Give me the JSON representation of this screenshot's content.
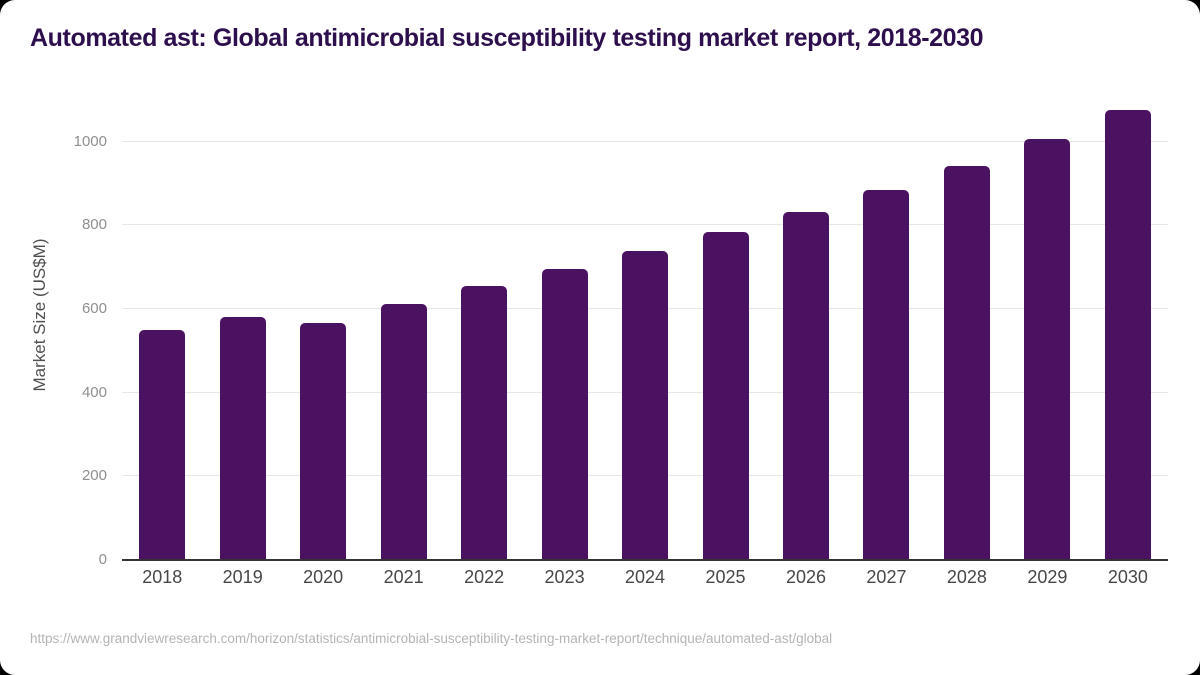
{
  "page": {
    "title": "Automated ast: Global antimicrobial susceptibility testing market report, 2018-2030",
    "source_url": "https://www.grandviewresearch.com/horizon/statistics/antimicrobial-susceptibility-testing-market-report/technique/automated-ast/global"
  },
  "colors": {
    "background": "#000000",
    "card": "#ffffff",
    "title": "#2e0f4e",
    "bar": "#4a1260",
    "gridline": "#e7e7e7",
    "axis_line": "#333333",
    "tick_label": "#8f8f8f",
    "x_label": "#474747",
    "axis_title": "#4f4f4f",
    "url": "#b4b4b4"
  },
  "chart_data": {
    "type": "bar",
    "title": "Automated ast: Global antimicrobial susceptibility testing market report, 2018-2030",
    "categories": [
      "2018",
      "2019",
      "2020",
      "2021",
      "2022",
      "2023",
      "2024",
      "2025",
      "2026",
      "2027",
      "2028",
      "2029",
      "2030"
    ],
    "values": [
      550,
      581,
      566,
      613,
      656,
      696,
      740,
      785,
      832,
      885,
      943,
      1006,
      1077
    ],
    "xlabel": "",
    "ylabel": "Market Size (US$M)",
    "ylim": [
      0,
      1100
    ],
    "yticks": [
      0,
      200,
      400,
      600,
      800,
      1000
    ],
    "grid": "horizontal",
    "legend": false,
    "bar_color": "#4a1260"
  }
}
